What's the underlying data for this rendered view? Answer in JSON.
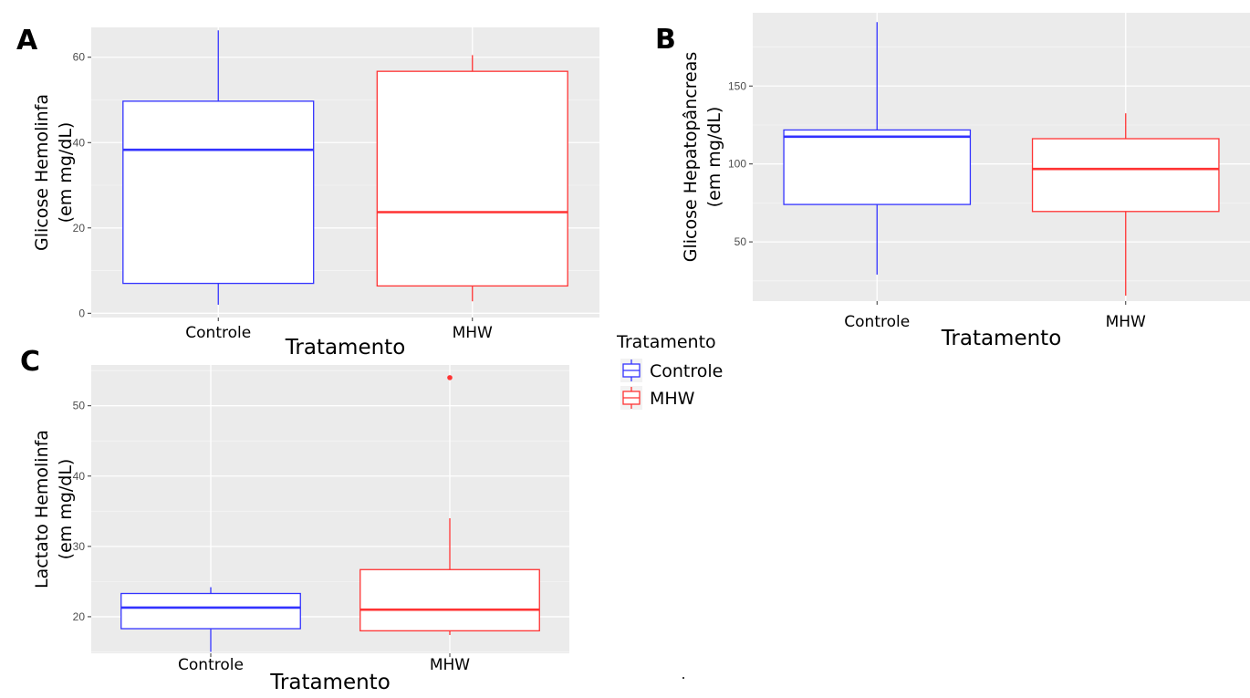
{
  "chart_data": [
    {
      "panel": "A",
      "type": "box",
      "xlabel": "Tratamento",
      "ylabel": [
        "Glicose Hemolinfa",
        "(em mg/dL)"
      ],
      "categories": [
        "Controle",
        "MHW"
      ],
      "yticks": [
        0,
        20,
        40,
        60
      ],
      "ylim": [
        -1,
        67
      ],
      "series": [
        {
          "name": "Controle",
          "color": "#3333ff",
          "min": 2,
          "q1": 7,
          "median": 38.3,
          "q3": 49.7,
          "max": 66.3,
          "outliers": []
        },
        {
          "name": "MHW",
          "color": "#ff3333",
          "min": 2.8,
          "q1": 6.4,
          "median": 23.7,
          "q3": 56.7,
          "max": 60.5,
          "outliers": []
        }
      ]
    },
    {
      "panel": "B",
      "type": "box",
      "xlabel": "Tratamento",
      "ylabel": [
        "Glicose Hepatopâncreas",
        "(em mg/dL)"
      ],
      "categories": [
        "Controle",
        "MHW"
      ],
      "yticks": [
        50,
        100,
        150
      ],
      "ylim": [
        12,
        197
      ],
      "series": [
        {
          "name": "Controle",
          "color": "#3333ff",
          "min": 29,
          "q1": 74,
          "median": 117.5,
          "q3": 121.8,
          "max": 191,
          "outliers": []
        },
        {
          "name": "MHW",
          "color": "#ff3333",
          "min": 15.5,
          "q1": 69.5,
          "median": 96.8,
          "q3": 116.2,
          "max": 132.5,
          "outliers": []
        }
      ]
    },
    {
      "panel": "C",
      "type": "box",
      "xlabel": "Tratamento",
      "ylabel": [
        "Lactato Hemolinfa",
        "(em mg/dL)"
      ],
      "categories": [
        "Controle",
        "MHW"
      ],
      "yticks": [
        20,
        30,
        40,
        50
      ],
      "ylim": [
        14.8,
        55.8
      ],
      "series": [
        {
          "name": "Controle",
          "color": "#3333ff",
          "min": 15,
          "q1": 18.3,
          "median": 21.3,
          "q3": 23.3,
          "max": 24.2,
          "outliers": []
        },
        {
          "name": "MHW",
          "color": "#ff3333",
          "min": 17.4,
          "q1": 18,
          "median": 21,
          "q3": 26.7,
          "max": 34,
          "outliers": [
            54
          ]
        }
      ]
    }
  ],
  "legend": {
    "title": "Tratamento",
    "items": [
      {
        "label": "Controle",
        "color": "#3333ff"
      },
      {
        "label": "MHW",
        "color": "#ff3333"
      }
    ]
  }
}
